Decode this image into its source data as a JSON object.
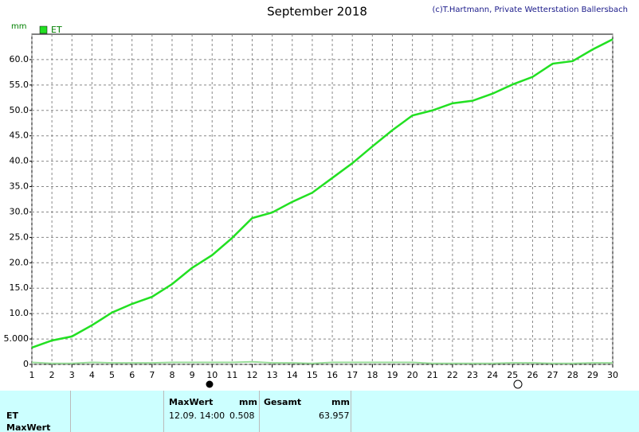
{
  "chart_data": {
    "type": "line",
    "title": "September 2018",
    "credit": "(c)T.Hartmann, Private Wetterstation Ballersbach",
    "y_unit": "mm",
    "x": [
      1,
      2,
      3,
      4,
      5,
      6,
      7,
      8,
      9,
      10,
      11,
      12,
      13,
      14,
      15,
      16,
      17,
      18,
      19,
      20,
      21,
      22,
      23,
      24,
      25,
      26,
      27,
      28,
      29,
      30
    ],
    "series": [
      {
        "name": "ET",
        "color": "#22e022",
        "values": [
          3.3,
          4.7,
          5.5,
          7.7,
          10.2,
          11.9,
          13.3,
          15.8,
          19.0,
          21.5,
          24.9,
          28.8,
          29.9,
          32.0,
          33.8,
          36.7,
          39.6,
          42.9,
          46.1,
          49.0,
          50.0,
          51.4,
          51.9,
          53.3,
          55.1,
          56.6,
          59.2,
          59.7,
          62.0,
          64.0
        ]
      },
      {
        "color": "#99dd99",
        "values": [
          0.4,
          0.2,
          0.2,
          0.4,
          0.3,
          0.3,
          0.3,
          0.4,
          0.4,
          0.4,
          0.4,
          0.5,
          0.3,
          0.3,
          0.2,
          0.4,
          0.4,
          0.4,
          0.4,
          0.4,
          0.2,
          0.2,
          0.2,
          0.2,
          0.3,
          0.3,
          0.2,
          0.2,
          0.3,
          0.3
        ]
      }
    ],
    "xlim": [
      1,
      30
    ],
    "xticks": [
      1,
      2,
      3,
      4,
      5,
      6,
      7,
      8,
      9,
      10,
      11,
      12,
      13,
      14,
      15,
      16,
      17,
      18,
      19,
      20,
      21,
      22,
      23,
      24,
      25,
      26,
      27,
      28,
      29,
      30
    ],
    "ylim": [
      0,
      65
    ],
    "yticks": [
      0,
      {
        "value": 5,
        "label": "5.000"
      },
      {
        "value": 10,
        "label": "10.0"
      },
      {
        "value": 15,
        "label": "15.0"
      },
      {
        "value": 20,
        "label": "20.0"
      },
      {
        "value": 25,
        "label": "25.0"
      },
      {
        "value": 30,
        "label": "30.0"
      },
      {
        "value": 35,
        "label": "35.0"
      },
      {
        "value": 40,
        "label": "40.0"
      },
      {
        "value": 45,
        "label": "45.0"
      },
      {
        "value": 50,
        "label": "50.0"
      },
      {
        "value": 55,
        "label": "55.0"
      },
      {
        "value": 60,
        "label": "60.0"
      }
    ],
    "grid": true
  },
  "table": {
    "row_labels": [
      "ET",
      "MaxWert"
    ],
    "max": {
      "header": "MaxWert",
      "unit": "mm",
      "time": "12.09. 14:00",
      "value": "0.508"
    },
    "total": {
      "header": "Gesamt",
      "unit": "mm",
      "value": "63.957"
    }
  }
}
